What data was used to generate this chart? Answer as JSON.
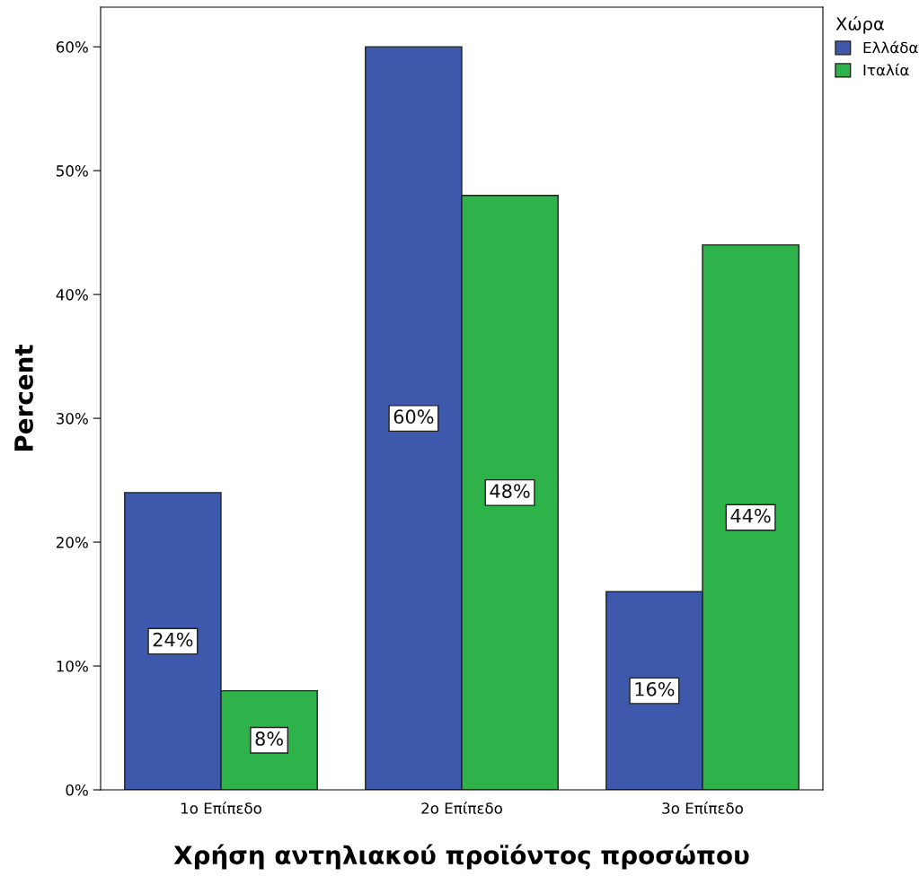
{
  "chart_data": {
    "type": "bar",
    "xlabel": "Χρήση αντηλιακού προϊόντος προσώπου",
    "ylabel": "Percent",
    "categories": [
      "1ο Επίπεδο",
      "2ο Επίπεδο",
      "3ο Επίπεδο"
    ],
    "series": [
      {
        "name": "Ελλάδα",
        "color": "#3e58ac",
        "values": [
          24,
          60,
          16
        ],
        "value_labels": [
          "24%",
          "60%",
          "16%"
        ]
      },
      {
        "name": "Ιταλία",
        "color": "#2db34a",
        "values": [
          8,
          48,
          44
        ],
        "value_labels": [
          "8%",
          "48%",
          "44%"
        ]
      }
    ],
    "ylim": [
      0,
      63.2
    ],
    "yticks": [
      {
        "value": 0,
        "label": "0%"
      },
      {
        "value": 10,
        "label": "10%"
      },
      {
        "value": 20,
        "label": "20%"
      },
      {
        "value": 30,
        "label": "30%"
      },
      {
        "value": 40,
        "label": "40%"
      },
      {
        "value": 50,
        "label": "50%"
      },
      {
        "value": 60,
        "label": "60%"
      }
    ],
    "legend": "top right",
    "legend_title": "Χώρα",
    "grid": false
  }
}
